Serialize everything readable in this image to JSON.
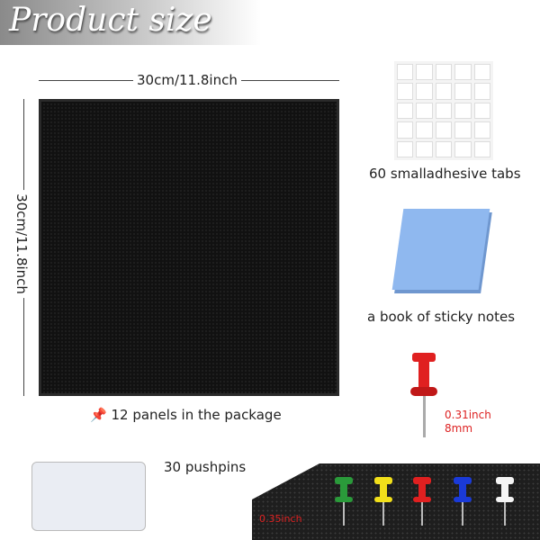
{
  "header": {
    "title": "Product size"
  },
  "dimensions": {
    "width": "30cm/11.8inch",
    "height": "30cm/11.8inch"
  },
  "items": {
    "tabs": "60 smalladhesive tabs",
    "notes": "a book of sticky notes",
    "panels": "12 panels in the package",
    "pushpins": "30 pushpins"
  },
  "pin_size": {
    "inch": "0.31inch",
    "mm": "8mm"
  },
  "board_thickness": "0.35inch",
  "colors": {
    "panel": "#111111",
    "notes": "#8fb8ef",
    "accent": "#dd2222"
  },
  "pin_colors": [
    "#2a9a3a",
    "#f2e01a",
    "#e02020",
    "#1a3ad8",
    "#f5f5f5"
  ]
}
